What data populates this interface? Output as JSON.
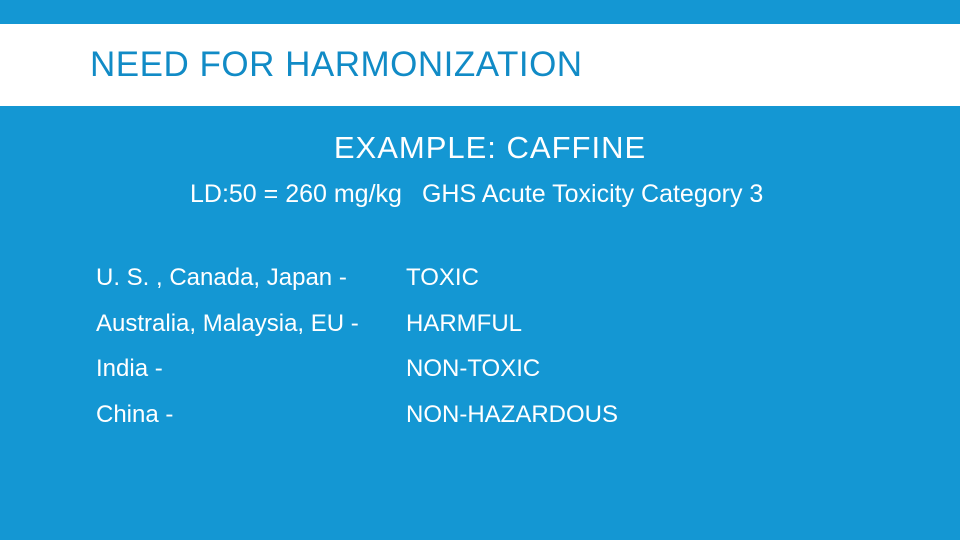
{
  "colors": {
    "background": "#1497d3",
    "band_background": "#ffffff",
    "title_text": "#118bc6",
    "body_text": "#ffffff"
  },
  "title": "NEED FOR HARMONIZATION",
  "example_label": "EXAMPLE:  CAFFINE",
  "subline_left": "LD:50 =  260 mg/kg",
  "subline_right": "GHS Acute Toxicity Category 3",
  "rows": [
    {
      "region": "U. S. , Canada, Japan   -",
      "classification": "TOXIC"
    },
    {
      "region": "Australia, Malaysia, EU  -",
      "classification": "HARMFUL"
    },
    {
      "region": "India   -",
      "classification": "NON-TOXIC"
    },
    {
      "region": "China   -",
      "classification": "NON-HAZARDOUS"
    }
  ]
}
